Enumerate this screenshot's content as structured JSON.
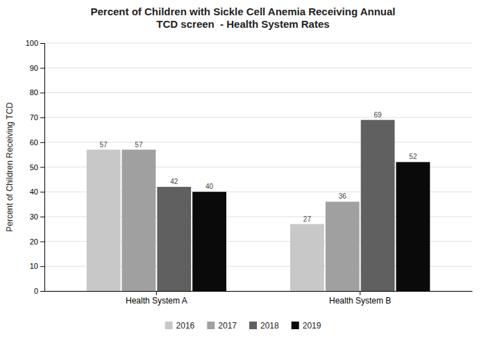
{
  "chart_data": {
    "type": "bar",
    "title": "Percent of Children with Sickle Cell Anemia Receiving Annual\nTCD screen  - Health System Rates",
    "ylabel": "Percent of Children Receiving TCD",
    "categories": [
      "Health System A",
      "Health System B"
    ],
    "series": [
      {
        "name": "2016",
        "color": "#c8c8c8",
        "values": [
          57,
          27
        ]
      },
      {
        "name": "2017",
        "color": "#a0a0a0",
        "values": [
          57,
          36
        ]
      },
      {
        "name": "2018",
        "color": "#606060",
        "values": [
          42,
          69
        ]
      },
      {
        "name": "2019",
        "color": "#0a0a0a",
        "values": [
          40,
          52
        ]
      }
    ],
    "ylim": [
      0,
      100
    ],
    "yticks": [
      0,
      10,
      20,
      30,
      40,
      50,
      60,
      70,
      80,
      90,
      100
    ],
    "grid": true,
    "legend": "bottom",
    "data_labels": true
  }
}
